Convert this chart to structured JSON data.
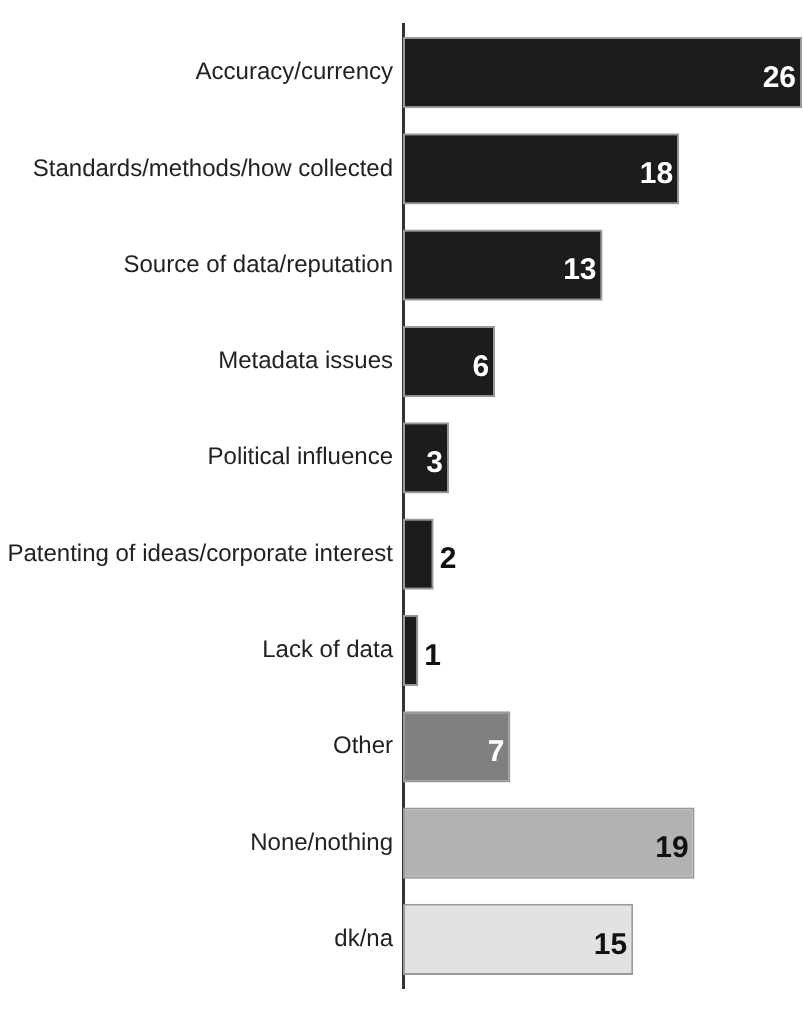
{
  "chart_data": {
    "type": "bar",
    "orientation": "horizontal",
    "categories": [
      "Accuracy/currency",
      "Standards/methods/how collected",
      "Source of data/reputation",
      "Metadata issues",
      "Political influence",
      "Patenting of ideas/corporate interest",
      "Lack of data",
      "Other",
      "None/nothing",
      "dk/na"
    ],
    "values": [
      26,
      18,
      13,
      6,
      3,
      2,
      1,
      7,
      19,
      15
    ],
    "colors": [
      "#1c1c1c",
      "#1c1c1c",
      "#1c1c1c",
      "#1c1c1c",
      "#1c1c1c",
      "#1c1c1c",
      "#1c1c1c",
      "#808080",
      "#b2b2b2",
      "#e2e2e2"
    ],
    "data_labels": true,
    "grid": false,
    "legend": false
  }
}
